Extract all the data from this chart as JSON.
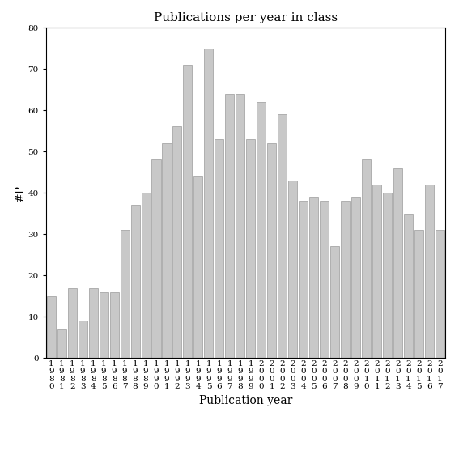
{
  "title": "Publications per year in class",
  "xlabel": "Publication year",
  "ylabel": "#P",
  "years": [
    "1980",
    "1981",
    "1982",
    "1983",
    "1984",
    "1985",
    "1986",
    "1987",
    "1988",
    "1989",
    "1990",
    "1991",
    "1992",
    "1993",
    "1994",
    "1995",
    "1996",
    "1997",
    "1998",
    "1999",
    "2000",
    "2001",
    "2002",
    "2003",
    "2004",
    "2005",
    "2006",
    "2007",
    "2008",
    "2009",
    "2010",
    "2011",
    "2012",
    "2013",
    "2014",
    "2015",
    "2016",
    "2017"
  ],
  "values": [
    15,
    7,
    17,
    9,
    17,
    16,
    16,
    31,
    37,
    40,
    48,
    52,
    56,
    71,
    44,
    75,
    53,
    64,
    64,
    53,
    62,
    52,
    59,
    43,
    38,
    39,
    38,
    27,
    38,
    39,
    48,
    42,
    40,
    46,
    35,
    31,
    42,
    31
  ],
  "bar_color": "#c8c8c8",
  "bar_edge_color": "#888888",
  "ylim": [
    0,
    80
  ],
  "yticks": [
    0,
    10,
    20,
    30,
    40,
    50,
    60,
    70,
    80
  ],
  "background_color": "#ffffff",
  "title_fontsize": 11,
  "axis_label_fontsize": 10,
  "tick_fontsize": 7.5
}
